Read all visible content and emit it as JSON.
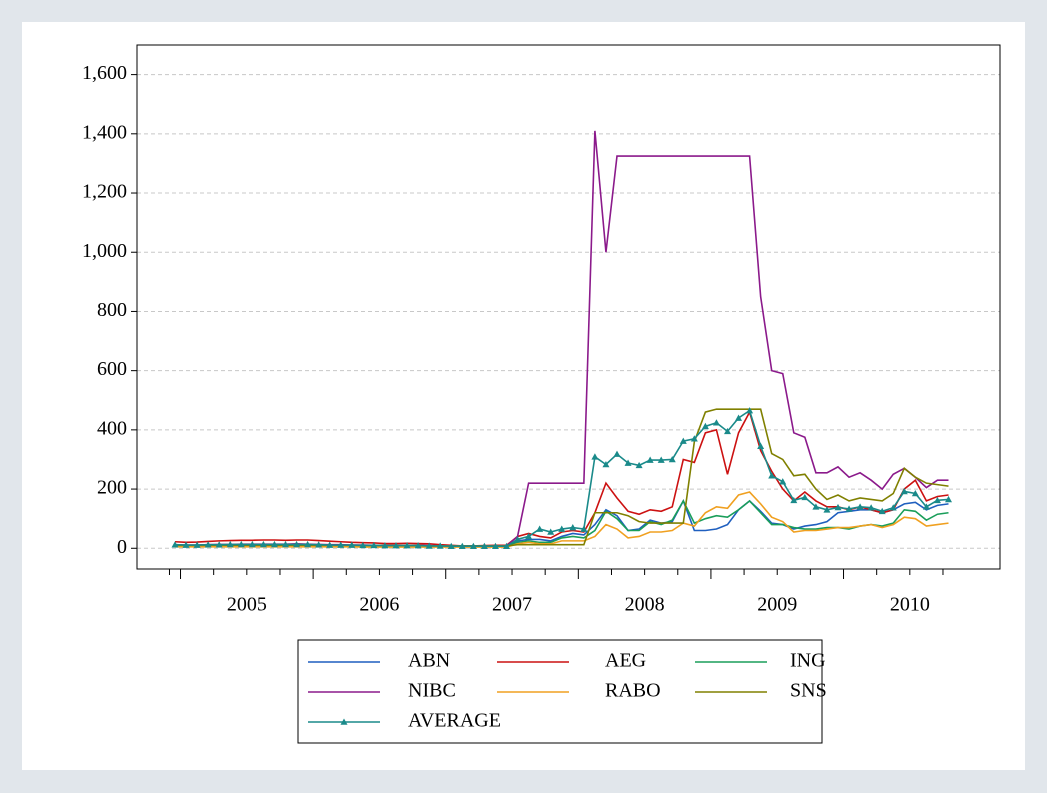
{
  "chart_data": {
    "type": "line",
    "categories": [
      null,
      null,
      null,
      null,
      null,
      null,
      null,
      "2005",
      null,
      null,
      null,
      null,
      null,
      null,
      null,
      null,
      null,
      null,
      null,
      "2006",
      null,
      null,
      null,
      null,
      null,
      null,
      null,
      null,
      null,
      null,
      null,
      "2007",
      null,
      null,
      null,
      null,
      null,
      null,
      null,
      null,
      null,
      null,
      null,
      "2008",
      null,
      null,
      null,
      null,
      null,
      null,
      null,
      null,
      null,
      null,
      null,
      "2009",
      null,
      null,
      null,
      null,
      null,
      null,
      null,
      null,
      null,
      null,
      null,
      "2010",
      null,
      null,
      null
    ],
    "ylim": [
      -70,
      1700
    ],
    "yticks": [
      0,
      200,
      400,
      600,
      800,
      {
        "value": 1000,
        "label": "1,000"
      },
      {
        "value": 1200,
        "label": "1,200"
      },
      {
        "value": 1400,
        "label": "1,400"
      },
      {
        "value": 1600,
        "label": "1,600"
      }
    ],
    "grid": true,
    "series": [
      {
        "name": "ABN",
        "color": "#1f5fbf",
        "values": [
          10,
          10,
          10,
          11,
          11,
          11,
          11,
          11,
          11,
          10,
          10,
          10,
          10,
          9,
          9,
          9,
          9,
          8,
          8,
          8,
          7,
          7,
          7,
          6,
          6,
          6,
          6,
          6,
          6,
          6,
          6,
          25,
          30,
          30,
          25,
          40,
          50,
          45,
          80,
          130,
          110,
          60,
          65,
          95,
          85,
          90,
          160,
          60,
          60,
          65,
          80,
          130,
          160,
          125,
          85,
          80,
          65,
          75,
          80,
          90,
          120,
          125,
          130,
          130,
          120,
          130,
          150,
          155,
          130,
          145,
          150
        ]
      },
      {
        "name": "AEG",
        "color": "#cc1111",
        "values": [
          22,
          20,
          21,
          23,
          25,
          26,
          27,
          27,
          28,
          28,
          27,
          28,
          28,
          26,
          24,
          22,
          20,
          19,
          18,
          16,
          16,
          17,
          16,
          15,
          12,
          10,
          8,
          8,
          9,
          10,
          10,
          40,
          50,
          40,
          35,
          55,
          60,
          55,
          120,
          220,
          170,
          125,
          115,
          130,
          125,
          140,
          300,
          290,
          390,
          400,
          250,
          390,
          460,
          330,
          260,
          200,
          160,
          190,
          160,
          140,
          140,
          130,
          140,
          130,
          120,
          130,
          200,
          230,
          160,
          175,
          180
        ]
      },
      {
        "name": "ING",
        "color": "#1a9e5a",
        "values": [
          8,
          8,
          8,
          9,
          9,
          9,
          9,
          9,
          9,
          9,
          9,
          9,
          9,
          8,
          8,
          8,
          8,
          8,
          8,
          7,
          7,
          7,
          7,
          7,
          6,
          6,
          6,
          6,
          6,
          6,
          6,
          20,
          25,
          20,
          20,
          35,
          40,
          35,
          60,
          125,
          100,
          60,
          60,
          90,
          80,
          95,
          160,
          85,
          100,
          110,
          105,
          130,
          160,
          120,
          80,
          80,
          70,
          65,
          65,
          70,
          70,
          65,
          75,
          80,
          75,
          85,
          130,
          125,
          95,
          115,
          120
        ]
      },
      {
        "name": "NIBC",
        "color": "#8b1a8b",
        "values": [
          12,
          11,
          11,
          12,
          13,
          13,
          14,
          14,
          14,
          14,
          14,
          15,
          14,
          13,
          12,
          12,
          11,
          11,
          10,
          10,
          10,
          10,
          10,
          9,
          8,
          8,
          8,
          8,
          8,
          8,
          8,
          40,
          220,
          220,
          220,
          220,
          220,
          220,
          1410,
          1000,
          1325,
          1325,
          1325,
          1325,
          1325,
          1325,
          1325,
          1325,
          1325,
          1325,
          1325,
          1325,
          1325,
          850,
          600,
          590,
          390,
          375,
          255,
          255,
          275,
          240,
          255,
          230,
          200,
          250,
          270,
          240,
          205,
          230,
          230
        ]
      },
      {
        "name": "RABO",
        "color": "#f0a020",
        "values": [
          5,
          5,
          5,
          5,
          5,
          5,
          5,
          5,
          5,
          5,
          5,
          5,
          5,
          5,
          5,
          5,
          5,
          4,
          4,
          4,
          4,
          4,
          4,
          4,
          4,
          4,
          4,
          4,
          4,
          4,
          4,
          15,
          20,
          15,
          15,
          25,
          25,
          25,
          40,
          80,
          65,
          35,
          40,
          55,
          55,
          60,
          85,
          75,
          120,
          140,
          135,
          180,
          190,
          150,
          105,
          90,
          55,
          60,
          60,
          65,
          70,
          70,
          75,
          80,
          70,
          80,
          105,
          100,
          75,
          80,
          85
        ]
      },
      {
        "name": "SNS",
        "color": "#808000",
        "values": [
          10,
          10,
          10,
          10,
          11,
          11,
          11,
          11,
          11,
          11,
          11,
          11,
          11,
          10,
          10,
          10,
          10,
          10,
          10,
          9,
          9,
          9,
          9,
          8,
          8,
          8,
          8,
          8,
          8,
          8,
          8,
          12,
          12,
          12,
          12,
          12,
          12,
          12,
          120,
          120,
          120,
          110,
          90,
          85,
          85,
          85,
          85,
          360,
          460,
          470,
          470,
          470,
          470,
          470,
          320,
          300,
          245,
          250,
          200,
          165,
          180,
          160,
          170,
          165,
          160,
          185,
          270,
          240,
          220,
          215,
          210
        ]
      },
      {
        "name": "AVERAGE",
        "color": "#1a8a8a",
        "marker": "triangle",
        "values": [
          12,
          11,
          11,
          12,
          12,
          13,
          13,
          13,
          13,
          13,
          13,
          13,
          13,
          12,
          11,
          11,
          11,
          10,
          10,
          9,
          9,
          9,
          9,
          8,
          8,
          7,
          7,
          7,
          7,
          7,
          7,
          30,
          40,
          65,
          55,
          65,
          70,
          65,
          309,
          283,
          318,
          288,
          280,
          298,
          298,
          300,
          362,
          370,
          412,
          424,
          395,
          440,
          465,
          345,
          245,
          225,
          162,
          172,
          140,
          130,
          138,
          133,
          140,
          137,
          125,
          137,
          192,
          185,
          140,
          162,
          165
        ]
      }
    ]
  }
}
